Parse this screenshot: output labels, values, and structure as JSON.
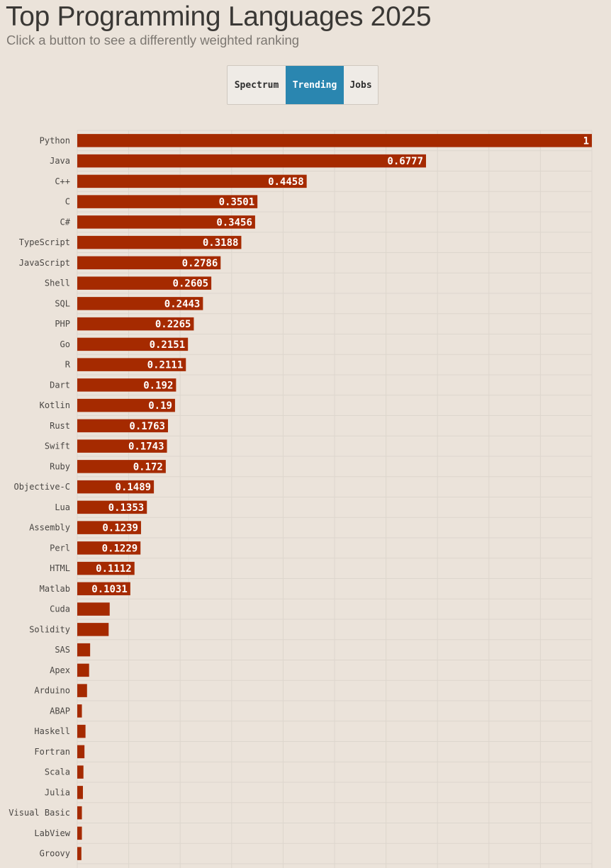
{
  "header": {
    "title": "Top Programming Languages 2025",
    "subtitle": "Click a button to see a differently weighted ranking"
  },
  "toggle": {
    "buttons": [
      {
        "label": "Spectrum",
        "active": false
      },
      {
        "label": "Trending",
        "active": true
      },
      {
        "label": "Jobs",
        "active": false
      }
    ]
  },
  "colors": {
    "bar": "#a52a00",
    "active_button": "#2a86b0",
    "background": "#ebe3da",
    "grid": "#ddd6cd"
  },
  "chart_data": {
    "type": "bar",
    "orientation": "horizontal",
    "title": "Top Programming Languages 2025",
    "xlim": [
      0,
      1
    ],
    "grid": true,
    "categories": [
      "Python",
      "Java",
      "C++",
      "C",
      "C#",
      "TypeScript",
      "JavaScript",
      "Shell",
      "SQL",
      "PHP",
      "Go",
      "R",
      "Dart",
      "Kotlin",
      "Rust",
      "Swift",
      "Ruby",
      "Objective-C",
      "Lua",
      "Assembly",
      "Perl",
      "HTML",
      "Matlab",
      "Cuda",
      "Solidity",
      "SAS",
      "Apex",
      "Arduino",
      "ABAP",
      "Haskell",
      "Fortran",
      "Scala",
      "Julia",
      "Visual Basic",
      "LabView",
      "Groovy"
    ],
    "values": [
      1,
      0.6777,
      0.4458,
      0.3501,
      0.3456,
      0.3188,
      0.2786,
      0.2605,
      0.2443,
      0.2265,
      0.2151,
      0.2111,
      0.192,
      0.19,
      0.1763,
      0.1743,
      0.172,
      0.1489,
      0.1353,
      0.1239,
      0.1229,
      0.1112,
      0.1031,
      0.063,
      0.061,
      0.025,
      0.023,
      0.019,
      0.009,
      0.016,
      0.014,
      0.012,
      0.011,
      0.009,
      0.009,
      0.008
    ],
    "data_labels": [
      "1",
      "0.6777",
      "0.4458",
      "0.3501",
      "0.3456",
      "0.3188",
      "0.2786",
      "0.2605",
      "0.2443",
      "0.2265",
      "0.2151",
      "0.2111",
      "0.192",
      "0.19",
      "0.1763",
      "0.1743",
      "0.172",
      "0.1489",
      "0.1353",
      "0.1239",
      "0.1229",
      "0.1112",
      "0.1031",
      "",
      "",
      "",
      "",
      "",
      "",
      "",
      "",
      "",
      "",
      "",
      "",
      ""
    ]
  }
}
